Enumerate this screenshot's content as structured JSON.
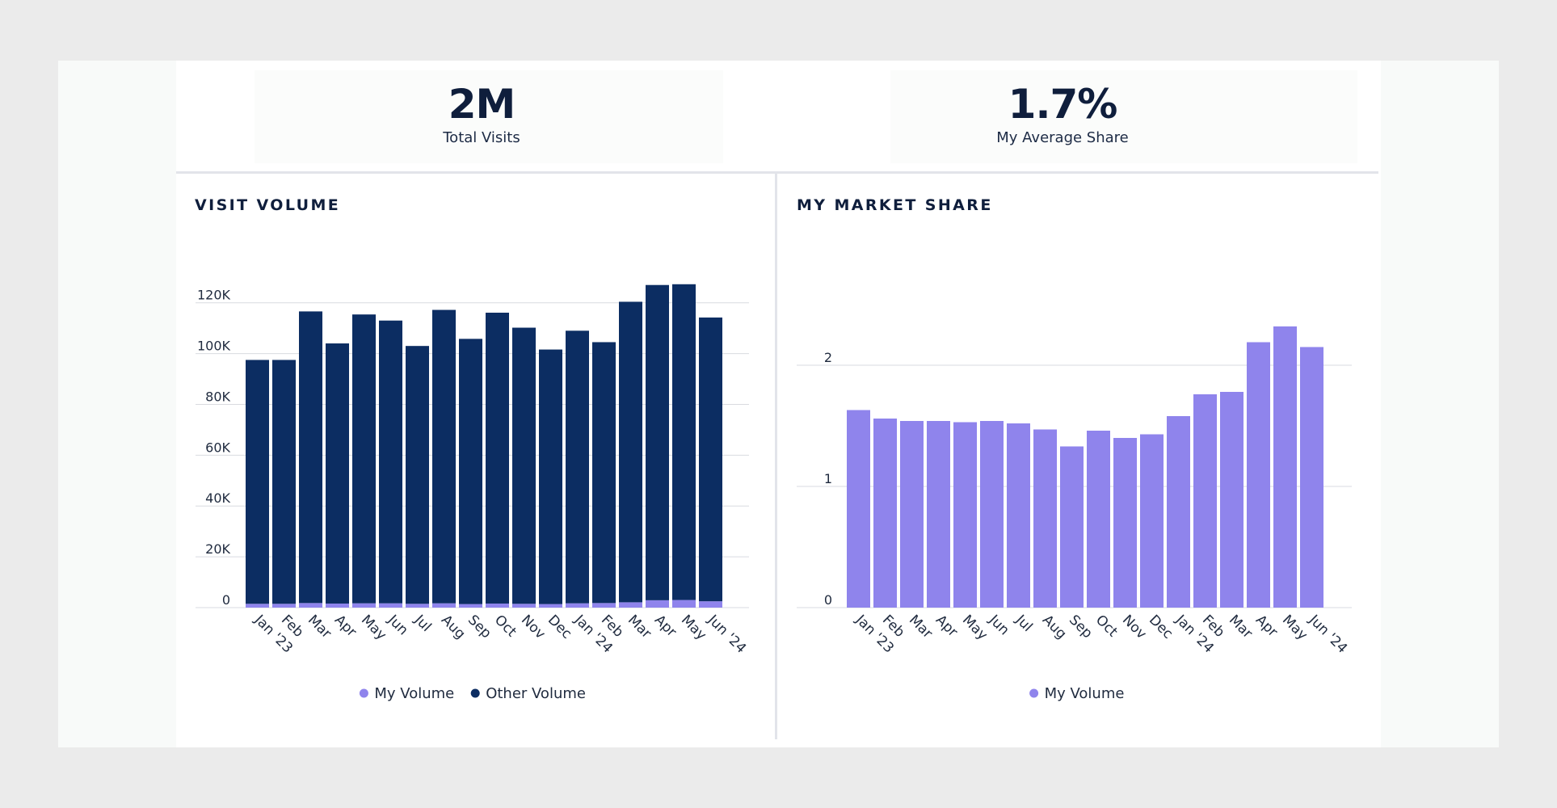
{
  "kpis": {
    "total_visits": {
      "value": "2M",
      "label": "Total Visits"
    },
    "average_share": {
      "value": "1.7%",
      "label": "My Average Share"
    }
  },
  "colors": {
    "my_volume": "#8f84ec",
    "other_volume": "#0c2d62",
    "grid": "#d9dbe0",
    "text": "#1f2a3e"
  },
  "chart_data": [
    {
      "type": "bar",
      "stacked": true,
      "title": "VISIT VOLUME",
      "categories": [
        "Jan '23",
        "Feb",
        "Mar",
        "Apr",
        "May",
        "Jun",
        "Jul",
        "Aug",
        "Sep",
        "Oct",
        "Nov",
        "Dec",
        "Jan '24",
        "Feb",
        "Mar",
        "Apr",
        "May",
        "Jun '24"
      ],
      "series": [
        {
          "name": "My Volume",
          "color": "#8f84ec",
          "values": [
            1500,
            1500,
            1800,
            1600,
            1700,
            1700,
            1500,
            1700,
            1400,
            1600,
            1500,
            1400,
            1700,
            1800,
            2100,
            2900,
            3000,
            2500
          ]
        },
        {
          "name": "Other Volume",
          "color": "#0c2d62",
          "values": [
            96000,
            96000,
            114800,
            102400,
            113700,
            111300,
            101500,
            115500,
            104400,
            114500,
            108700,
            100200,
            107300,
            102700,
            118300,
            124100,
            124300,
            111700
          ]
        }
      ],
      "yticks": [
        0,
        20000,
        40000,
        60000,
        80000,
        100000,
        120000
      ],
      "ytick_labels": [
        "0",
        "20K",
        "40K",
        "60K",
        "80K",
        "100K",
        "120K"
      ],
      "ylim": [
        0,
        132000
      ],
      "xlabel": "",
      "ylabel": "",
      "grid": true,
      "legend": [
        "My Volume",
        "Other Volume"
      ],
      "legend_position": "bottom-center"
    },
    {
      "type": "bar",
      "title": "MY MARKET SHARE",
      "categories": [
        "Jan '23",
        "Feb",
        "Mar",
        "Apr",
        "May",
        "Jun",
        "Jul",
        "Aug",
        "Sep",
        "Oct",
        "Nov",
        "Dec",
        "Jan '24",
        "Feb",
        "Mar",
        "Apr",
        "May",
        "Jun '24"
      ],
      "series": [
        {
          "name": "My Volume",
          "color": "#8f84ec",
          "values": [
            1.63,
            1.56,
            1.54,
            1.54,
            1.53,
            1.54,
            1.52,
            1.47,
            1.33,
            1.46,
            1.4,
            1.43,
            1.58,
            1.76,
            1.78,
            2.19,
            2.32,
            2.15
          ]
        }
      ],
      "yticks": [
        0,
        1,
        2
      ],
      "ytick_labels": [
        "0",
        "1",
        "2"
      ],
      "ylim": [
        0,
        2.5
      ],
      "xlabel": "",
      "ylabel": "",
      "grid": true,
      "legend": [
        "My Volume"
      ],
      "legend_position": "bottom-center"
    }
  ]
}
